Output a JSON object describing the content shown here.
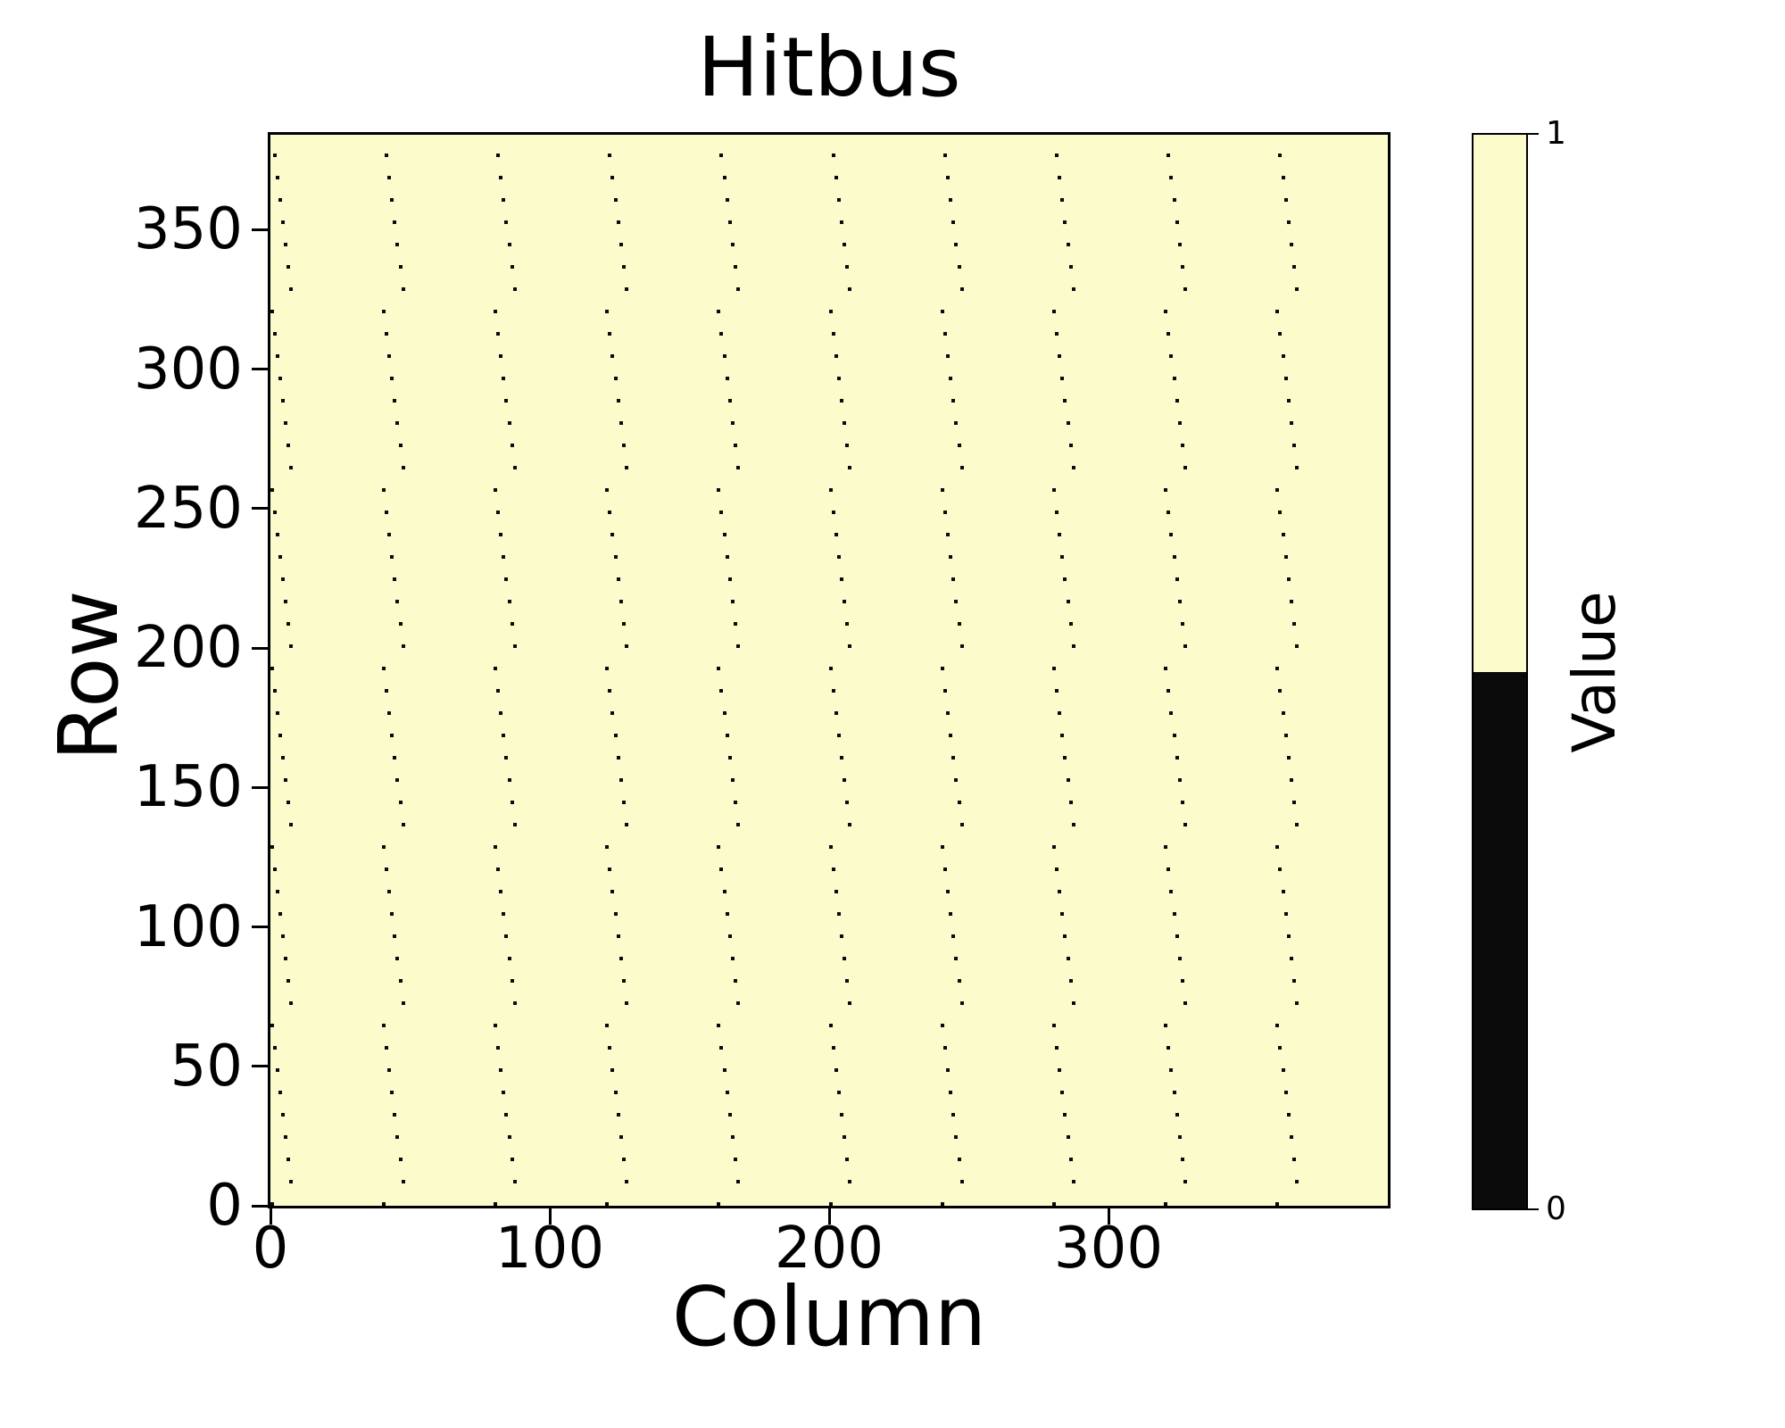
{
  "chart_data": {
    "type": "heatmap",
    "title": "Hitbus",
    "xlabel": "Column",
    "ylabel": "Row",
    "colorbar_label": "Value",
    "xlim": [
      0,
      400
    ],
    "ylim": [
      0,
      384
    ],
    "n_columns": 400,
    "n_rows": 384,
    "x_ticks": [
      0,
      100,
      200,
      300
    ],
    "y_ticks": [
      0,
      50,
      100,
      150,
      200,
      250,
      300,
      350
    ],
    "grid": false,
    "legend_position": "none",
    "colorbar": {
      "ticks": [
        {
          "label": "1",
          "value": 1,
          "position": "top"
        },
        {
          "label": "0",
          "value": 0,
          "position": "bottom"
        }
      ],
      "high_color": "#FBFBCB",
      "low_color": "#0a0a0a",
      "boundary_fraction_from_top": 0.5
    },
    "background_value": 1,
    "value_colors": {
      "1": "#FBFBCB",
      "0": "#0a0a0a"
    },
    "zero_pixel_pattern": {
      "description": "Pixels with value 0 on a value-1 background. One zero pixel every 8 rows in each of 10 column bands; column offset within band decreases by 1 each 8 rows with period 64 rows: col = band_base + (8 - ((row/8) mod 8)) mod 8",
      "column_band_bases": [
        0,
        40,
        80,
        120,
        160,
        200,
        240,
        280,
        320,
        360
      ],
      "row_start": 0,
      "row_step": 8,
      "row_end": 376,
      "offset_period": 8,
      "dots_per_band": 48,
      "total_zero_pixels": 480
    }
  }
}
